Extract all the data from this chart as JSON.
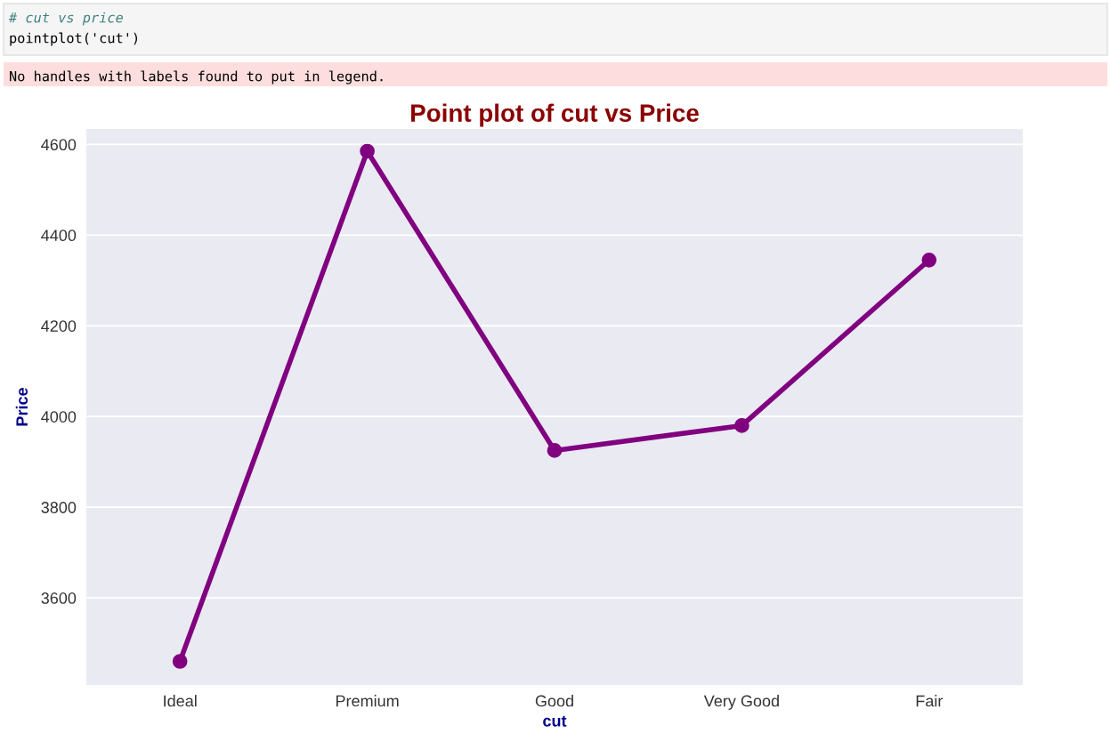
{
  "chart_data": {
    "type": "line",
    "title": "Point plot of cut vs Price",
    "xlabel": "cut",
    "ylabel": "Price",
    "categories": [
      "Ideal",
      "Premium",
      "Good",
      "Very Good",
      "Fair"
    ],
    "series": [
      {
        "color": "#800080",
        "values": [
          3460,
          4585,
          3925,
          3980,
          4345
        ]
      }
    ],
    "ylim": [
      3408,
      4634
    ],
    "yticks": [
      3600,
      3800,
      4000,
      4200,
      4400,
      4600
    ],
    "grid": "y",
    "marker": "circle",
    "line_style": "solid",
    "legend": false,
    "annotations": [
      "# cut vs price",
      "pointplot('cut')",
      "No handles with labels found to put in legend."
    ]
  }
}
